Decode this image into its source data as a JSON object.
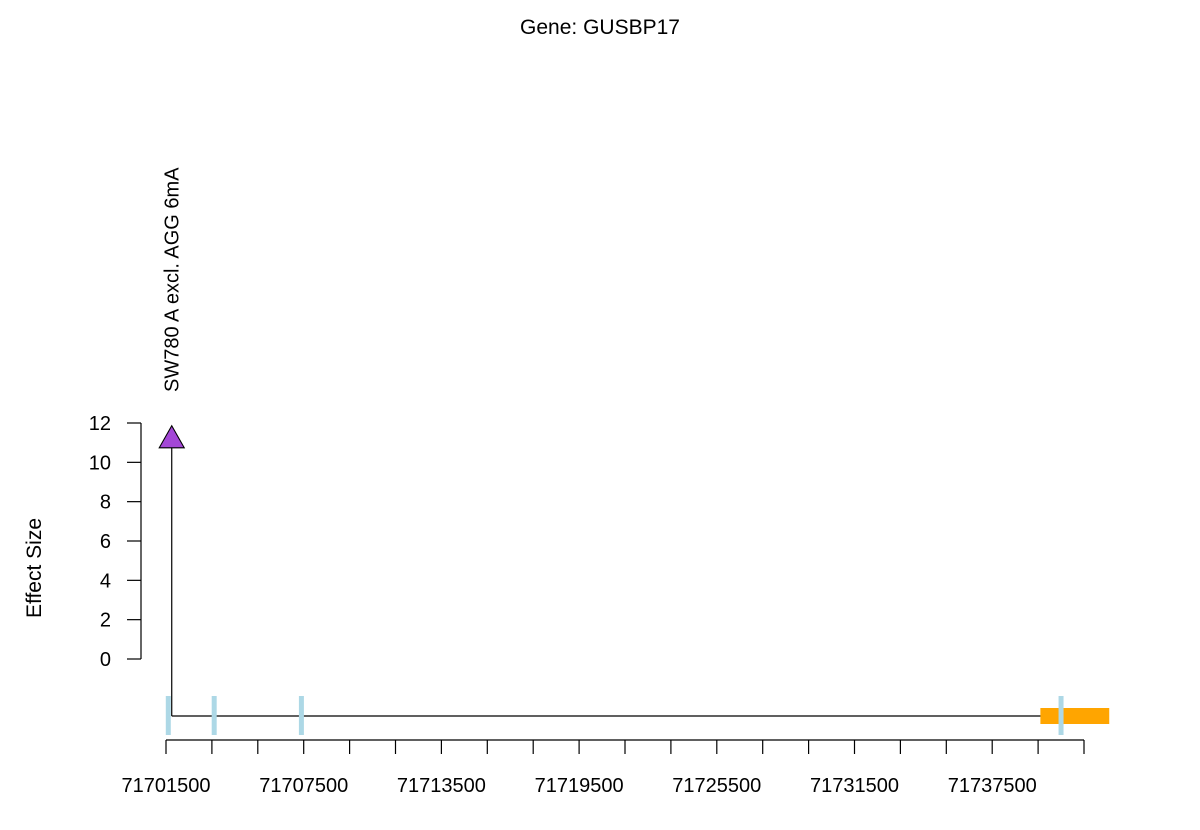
{
  "chart_data": {
    "type": "scatter",
    "title": "Gene: GUSBP17",
    "xlabel": "",
    "ylabel": "Effect Size",
    "yticks": [
      0,
      2,
      4,
      6,
      8,
      10,
      12
    ],
    "ylim": [
      0,
      12
    ],
    "xtick_labels": [
      "71701500",
      "71707500",
      "71713500",
      "71719500",
      "71725500",
      "71731500",
      "71737500"
    ],
    "xlim": [
      71701500,
      71741500
    ],
    "x_minor_step": 2000,
    "points": [
      {
        "x": 71701750,
        "y": 11.3,
        "label": "SW780 A excl. AGG 6mA",
        "marker": "triangle",
        "color": "#a347d6"
      }
    ],
    "gene_track": {
      "line_start": 71701750,
      "line_end": 71741500,
      "line_color": "#000000",
      "exon_color": "#add8e6",
      "exons": [
        {
          "x": 71701600
        },
        {
          "x": 71703600
        },
        {
          "x": 71707400
        },
        {
          "x": 71740500
        }
      ],
      "utr_color": "#ffa500",
      "utr_start": 71739600,
      "utr_end": 71742600
    }
  }
}
